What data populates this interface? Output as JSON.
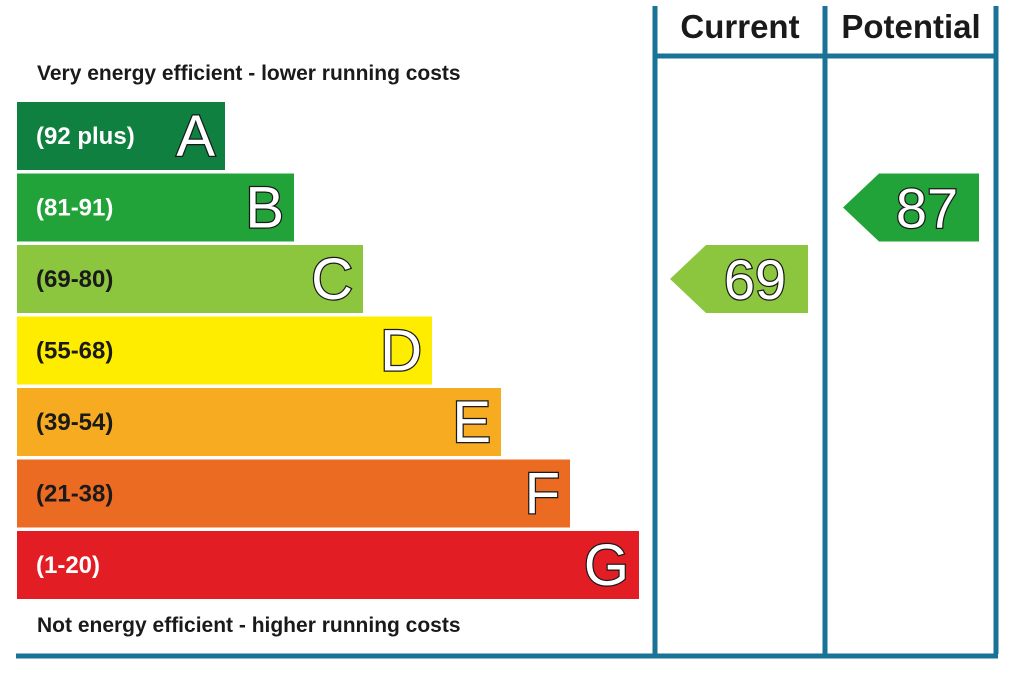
{
  "chart_data": {
    "type": "bar",
    "title": "",
    "top_caption": "Very energy efficient - lower running costs",
    "bottom_caption": "Not energy efficient - higher running costs",
    "columns": [
      "Current",
      "Potential"
    ],
    "bands": [
      {
        "letter": "A",
        "range": "(92 plus)",
        "min": 92,
        "max": 100,
        "color": "#0f8040"
      },
      {
        "letter": "B",
        "range": "(81-91)",
        "min": 81,
        "max": 91,
        "color": "#22a339"
      },
      {
        "letter": "C",
        "range": "(69-80)",
        "min": 69,
        "max": 80,
        "color": "#8cc63f"
      },
      {
        "letter": "D",
        "range": "(55-68)",
        "min": 55,
        "max": 68,
        "color": "#ffed00"
      },
      {
        "letter": "E",
        "range": "(39-54)",
        "min": 39,
        "max": 54,
        "color": "#f7ab21"
      },
      {
        "letter": "F",
        "range": "(21-38)",
        "min": 21,
        "max": 38,
        "color": "#ec6b23"
      },
      {
        "letter": "G",
        "range": "(1-20)",
        "min": 1,
        "max": 20,
        "color": "#e31d24"
      }
    ],
    "ratings": [
      {
        "column": "Current",
        "value": 69,
        "label": "69",
        "band": "C",
        "color": "#8cc63f"
      },
      {
        "column": "Potential",
        "value": 87,
        "label": "87",
        "band": "B",
        "color": "#22a339"
      }
    ],
    "frame_color": "#1a7297"
  }
}
